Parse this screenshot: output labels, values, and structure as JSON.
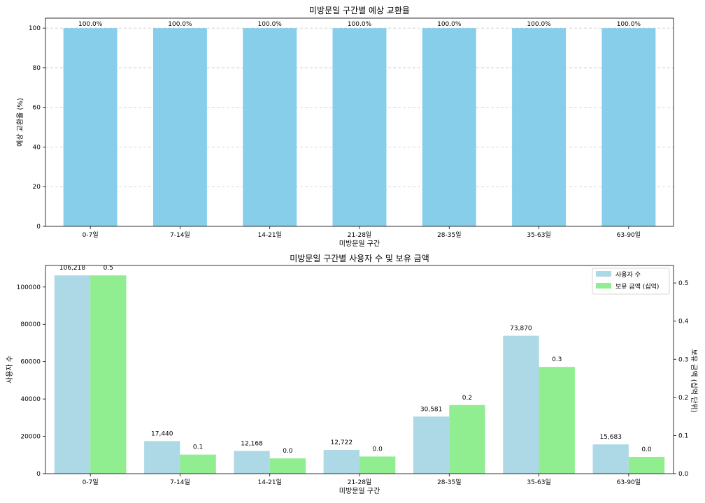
{
  "chart_data": [
    {
      "type": "bar",
      "title": "미방문일 구간별 예상 교환율",
      "xlabel": "미방문일 구간",
      "ylabel": "예상 교환율 (%)",
      "categories": [
        "0-7일",
        "7-14일",
        "14-21일",
        "21-28일",
        "28-35일",
        "35-63일",
        "63-90일"
      ],
      "values": [
        100.0,
        100.0,
        100.0,
        100.0,
        100.0,
        100.0,
        100.0
      ],
      "value_labels": [
        "100.0%",
        "100.0%",
        "100.0%",
        "100.0%",
        "100.0%",
        "100.0%",
        "100.0%"
      ],
      "ylim": [
        0,
        105
      ],
      "yticks": [
        "0",
        "20",
        "40",
        "60",
        "80",
        "100"
      ],
      "grid": "y",
      "color": "#87ceeb"
    },
    {
      "type": "bar",
      "title": "미방문일 구간별 사용자 수 및 보유 금액",
      "xlabel": "미방문일 구간",
      "ylabel": "사용자 수",
      "y2label": "보유 금액 (십억 단위)",
      "categories": [
        "0-7일",
        "7-14일",
        "14-21일",
        "21-28일",
        "28-35일",
        "35-63일",
        "63-90일"
      ],
      "series": [
        {
          "name": "사용자 수",
          "axis": "left",
          "color": "#add8e6",
          "values": [
            106218,
            17440,
            12168,
            12722,
            30581,
            73870,
            15683
          ],
          "value_labels": [
            "106,218",
            "17,440",
            "12,168",
            "12,722",
            "30,581",
            "73,870",
            "15,683"
          ]
        },
        {
          "name": "보유 금액 (십억)",
          "axis": "right",
          "color": "#90ee90",
          "values": [
            0.52,
            0.05,
            0.04,
            0.045,
            0.18,
            0.28,
            0.044
          ],
          "value_labels": [
            "0.5",
            "0.1",
            "0.0",
            "0.0",
            "0.2",
            "0.3",
            "0.0"
          ]
        }
      ],
      "ylim": [
        0,
        111530
      ],
      "y2lim": [
        0,
        0.546
      ],
      "yticks": [
        "0",
        "20000",
        "40000",
        "60000",
        "80000",
        "100000"
      ],
      "y2ticks": [
        "0.0",
        "0.1",
        "0.2",
        "0.3",
        "0.4",
        "0.5"
      ],
      "grid": "none",
      "legend": "top-right"
    }
  ]
}
